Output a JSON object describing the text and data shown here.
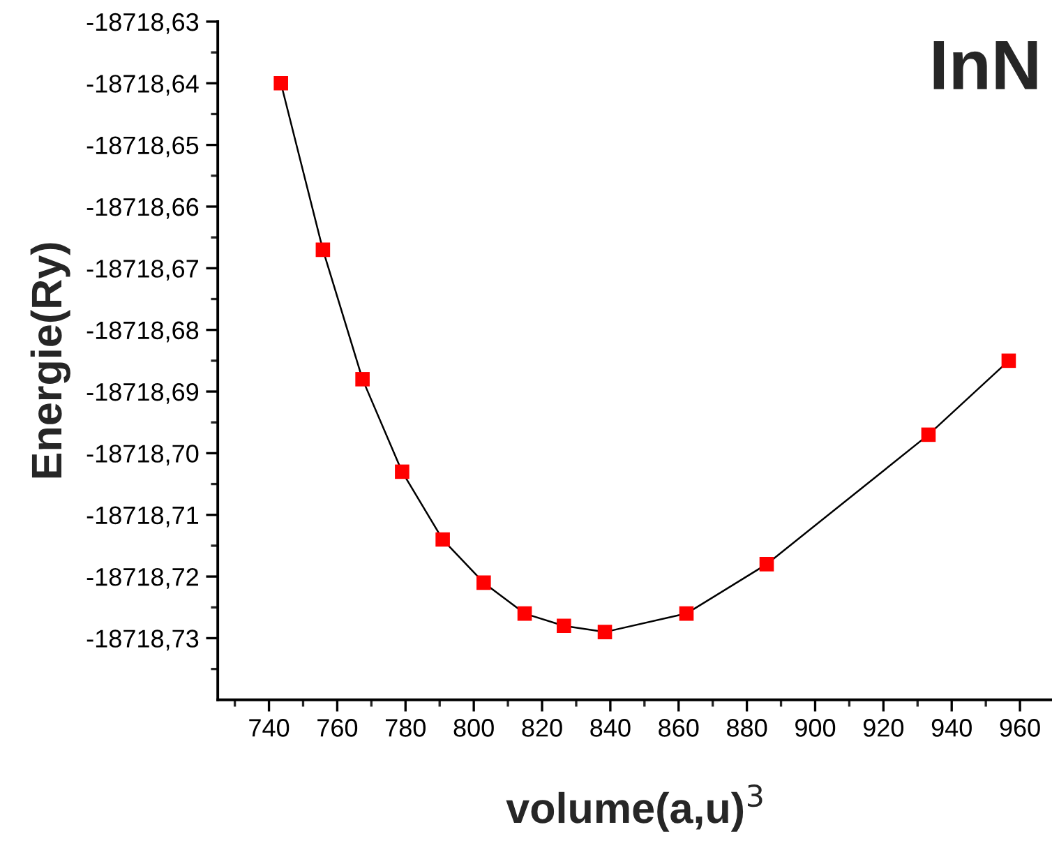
{
  "chart_data": {
    "type": "line",
    "xlabel": "volume(a,u)$^{3}$",
    "ylabel": "Energie(Ry)",
    "annotations": [
      "InN"
    ],
    "x": [
      743.5,
      755.8,
      767.4,
      779.0,
      790.9,
      802.9,
      814.9,
      826.4,
      838.4,
      862.3,
      885.8,
      933.2,
      956.7
    ],
    "series": [
      {
        "color": "#ff0000",
        "values": [
          -18718.64,
          -18718.667,
          -18718.688,
          -18718.703,
          -18718.714,
          -18718.721,
          -18718.726,
          -18718.728,
          -18718.729,
          -18718.726,
          -18718.718,
          -18718.697,
          -18718.685
        ]
      }
    ],
    "marker": "square",
    "line_style": "solid",
    "grid": false,
    "legend": false,
    "xlim": [
      725,
      970
    ],
    "ylim": [
      -18718.74,
      -18718.63
    ],
    "xticks": [
      {
        "value": 730,
        "label": null
      },
      740,
      {
        "value": 750,
        "label": null
      },
      760,
      {
        "value": 770,
        "label": null
      },
      780,
      {
        "value": 790,
        "label": null
      },
      800,
      {
        "value": 810,
        "label": null
      },
      820,
      {
        "value": 830,
        "label": null
      },
      840,
      {
        "value": 850,
        "label": null
      },
      860,
      {
        "value": 870,
        "label": null
      },
      880,
      {
        "value": 890,
        "label": null
      },
      900,
      {
        "value": 910,
        "label": null
      },
      920,
      {
        "value": 930,
        "label": null
      },
      940,
      {
        "value": 950,
        "label": null
      },
      960
    ],
    "yticks": [
      {
        "value": -18718.63,
        "label": "-18718,63"
      },
      {
        "value": -18718.635,
        "label": null
      },
      {
        "value": -18718.64,
        "label": "-18718,64"
      },
      {
        "value": -18718.645,
        "label": null
      },
      {
        "value": -18718.65,
        "label": "-18718,65"
      },
      {
        "value": -18718.655,
        "label": null
      },
      {
        "value": -18718.66,
        "label": "-18718,66"
      },
      {
        "value": -18718.665,
        "label": null
      },
      {
        "value": -18718.67,
        "label": "-18718,67"
      },
      {
        "value": -18718.675,
        "label": null
      },
      {
        "value": -18718.68,
        "label": "-18718,68"
      },
      {
        "value": -18718.685,
        "label": null
      },
      {
        "value": -18718.69,
        "label": "-18718,69"
      },
      {
        "value": -18718.695,
        "label": null
      },
      {
        "value": -18718.7,
        "label": "-18718,70"
      },
      {
        "value": -18718.705,
        "label": null
      },
      {
        "value": -18718.71,
        "label": "-18718,71"
      },
      {
        "value": -18718.715,
        "label": null
      },
      {
        "value": -18718.72,
        "label": "-18718,72"
      },
      {
        "value": -18718.725,
        "label": null
      },
      {
        "value": -18718.73,
        "label": "-18718,73"
      },
      {
        "value": -18718.735,
        "label": null
      }
    ]
  }
}
